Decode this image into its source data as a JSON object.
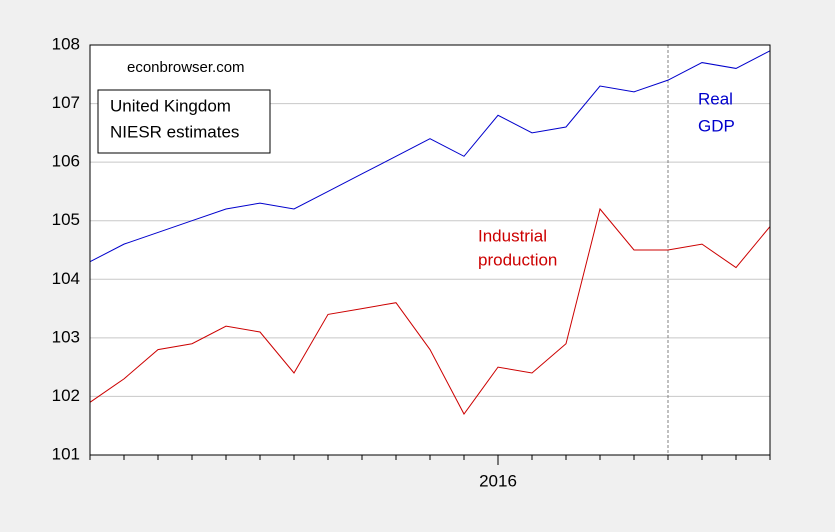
{
  "chart_data": {
    "type": "line",
    "categories": [
      null,
      null,
      null,
      null,
      null,
      null,
      null,
      null,
      null,
      null,
      null,
      null,
      "2016",
      null,
      null,
      null,
      null,
      null,
      null,
      null,
      null
    ],
    "series": [
      {
        "name": "Real GDP",
        "color": "#0000cc",
        "values": [
          104.3,
          104.6,
          104.8,
          105.0,
          105.2,
          105.3,
          105.2,
          105.5,
          105.8,
          106.1,
          106.4,
          106.1,
          106.8,
          106.5,
          106.6,
          107.3,
          107.2,
          107.4,
          107.7,
          107.6,
          107.9
        ]
      },
      {
        "name": "Industrial production",
        "color": "#cc0000",
        "values": [
          101.9,
          102.3,
          102.8,
          102.9,
          103.2,
          103.1,
          102.4,
          103.4,
          103.5,
          103.6,
          102.8,
          101.7,
          102.5,
          102.4,
          102.9,
          105.2,
          104.5,
          104.5,
          104.6,
          104.2,
          104.9
        ]
      }
    ],
    "ylim": [
      101,
      108
    ],
    "yticks": [
      101,
      102,
      103,
      104,
      105,
      106,
      107,
      108
    ],
    "grid": true,
    "vline_at": 17,
    "source": "econbrowser.com",
    "box_lines": [
      "United Kingdom",
      "NIESR estimates"
    ],
    "gdp_label": [
      "Real",
      "GDP"
    ],
    "ip_label": [
      "Industrial",
      "production"
    ]
  }
}
